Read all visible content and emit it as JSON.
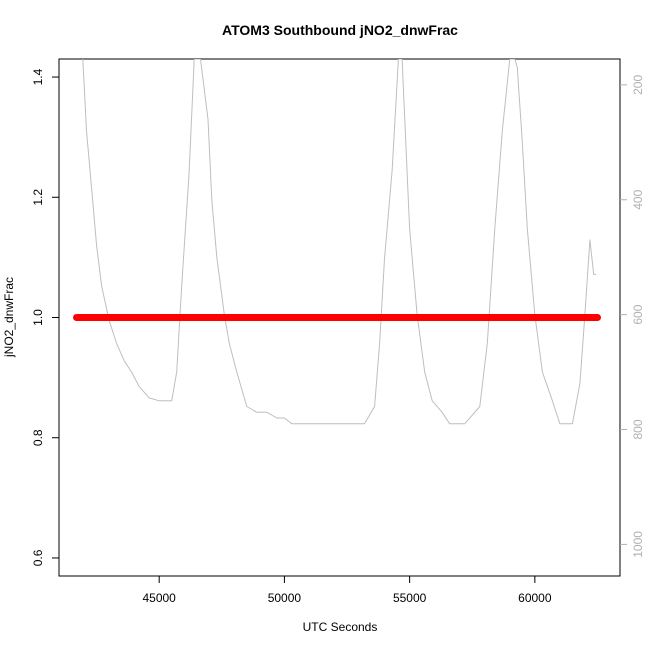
{
  "chart_data": {
    "type": "line",
    "title": "ATOM3 Southbound jNO2_dnwFrac",
    "xlabel": "UTC Seconds",
    "ylabel": "jNO2_dnwFrac",
    "xlim": [
      41000,
      63400
    ],
    "ylim": [
      0.57,
      1.43
    ],
    "x_ticks": [
      45000,
      50000,
      55000,
      60000
    ],
    "x_tick_labels": [
      "45000",
      "50000",
      "55000",
      "60000"
    ],
    "y_ticks": [
      0.6,
      0.8,
      1.0,
      1.2,
      1.4
    ],
    "y_tick_labels": [
      "0.6",
      "0.8",
      "1.0",
      "1.2",
      "1.4"
    ],
    "y2_lim": [
      1055,
      155
    ],
    "y2_ticks": [
      200,
      400,
      600,
      800,
      1000
    ],
    "y2_tick_labels": [
      "200",
      "400",
      "600",
      "800",
      "1000"
    ],
    "series": [
      {
        "color": "#ff0000",
        "axis": "left",
        "x": [
          41700,
          42500,
          44000,
          46000,
          48000,
          50000,
          52000,
          54000,
          56000,
          58000,
          60000,
          62000,
          62500
        ],
        "y": [
          1.0,
          1.0,
          1.0,
          1.0,
          1.0,
          1.0,
          1.0,
          1.0,
          1.0,
          1.0,
          1.0,
          1.0,
          1.0
        ]
      },
      {
        "color": "#bebebe",
        "axis": "right",
        "x": [
          41950,
          42100,
          42300,
          42500,
          42700,
          43000,
          43300,
          43600,
          43900,
          44200,
          44600,
          45000,
          45500,
          45700,
          45900,
          46200,
          46400,
          46650,
          46950,
          47100,
          47300,
          47600,
          47800,
          48100,
          48500,
          48900,
          49300,
          49700,
          50000,
          50300,
          50700,
          51500,
          52500,
          53200,
          53600,
          53800,
          54000,
          54300,
          54550,
          54700,
          55000,
          55300,
          55600,
          55900,
          56300,
          56600,
          57200,
          57800,
          58100,
          58400,
          58700,
          59000,
          59200,
          59300,
          59500,
          59700,
          60000,
          60300,
          60700,
          61000,
          61500,
          61800,
          62000,
          62200,
          62350,
          62450
        ],
        "y": [
          155,
          280,
          380,
          480,
          550,
          610,
          650,
          680,
          700,
          725,
          745,
          750,
          750,
          700,
          550,
          350,
          155,
          155,
          260,
          400,
          500,
          600,
          650,
          700,
          760,
          770,
          770,
          780,
          780,
          790,
          790,
          790,
          790,
          790,
          760,
          650,
          500,
          350,
          155,
          155,
          450,
          600,
          700,
          750,
          770,
          790,
          790,
          760,
          650,
          450,
          280,
          155,
          155,
          170,
          300,
          450,
          600,
          700,
          750,
          790,
          790,
          720,
          600,
          470,
          530,
          530
        ]
      }
    ]
  }
}
